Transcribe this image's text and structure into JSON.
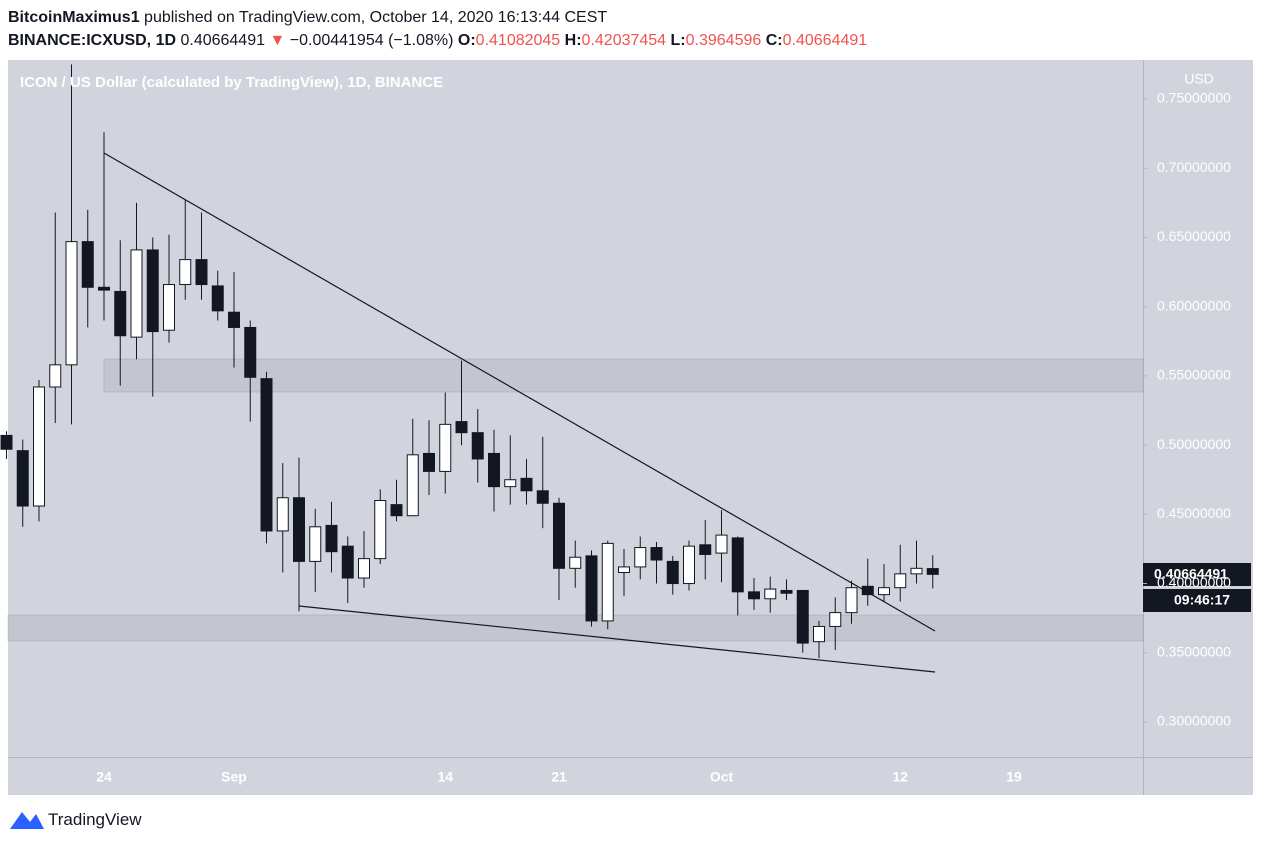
{
  "header": {
    "author": "BitcoinMaximus1",
    "published": "published on TradingView.com, October 14, 2020 16:13:44 CEST",
    "symbol": "BINANCE:ICXUSD, 1D",
    "change": "−0.00441954 (−1.08%)",
    "o_label": "O:",
    "h_label": "H:",
    "l_label": "L:",
    "c_label": "C:"
  },
  "chart_data": {
    "type": "candlestick",
    "title": "ICON / US Dollar (calculated by TradingView), 1D, BINANCE",
    "y_axis_label": "USD",
    "categories": [
      null,
      null,
      null,
      null,
      null,
      null,
      "24",
      null,
      null,
      null,
      null,
      null,
      null,
      null,
      "Sep",
      null,
      null,
      null,
      null,
      null,
      null,
      null,
      null,
      null,
      null,
      null,
      null,
      "14",
      null,
      null,
      null,
      null,
      null,
      null,
      "21",
      null,
      null,
      null,
      null,
      null,
      null,
      null,
      null,
      null,
      "Oct",
      null,
      null,
      null,
      null,
      null,
      null,
      null,
      null,
      null,
      null,
      "12",
      null,
      null,
      null,
      null,
      null,
      null,
      "19",
      null,
      null,
      null,
      null,
      null,
      null,
      null
    ],
    "open": [
      0.507,
      0.496,
      0.456,
      0.542,
      0.558,
      0.647,
      0.614,
      0.611,
      0.578,
      0.641,
      0.583,
      0.616,
      0.634,
      0.615,
      0.596,
      0.585,
      0.548,
      0.438,
      0.462,
      0.416,
      0.442,
      0.427,
      0.404,
      0.418,
      0.457,
      0.449,
      0.494,
      0.481,
      0.517,
      0.509,
      0.494,
      0.47,
      0.476,
      0.467,
      0.458,
      0.411,
      0.42,
      0.373,
      0.408,
      0.412,
      0.426,
      0.416,
      0.4,
      0.428,
      0.422,
      0.433,
      0.394,
      0.389,
      0.395,
      0.395,
      0.358,
      0.369,
      0.379,
      0.398,
      0.392,
      0.397,
      0.407,
      0.41082045,
      null,
      null,
      null,
      null,
      null,
      null,
      null,
      null,
      null,
      null,
      null,
      null
    ],
    "high": [
      0.51,
      0.504,
      0.547,
      0.668,
      0.775,
      0.67,
      0.726,
      0.648,
      0.675,
      0.65,
      0.652,
      0.677,
      0.668,
      0.626,
      0.625,
      0.59,
      0.553,
      0.487,
      0.491,
      0.454,
      0.459,
      0.434,
      0.438,
      0.468,
      0.475,
      0.519,
      0.518,
      0.538,
      0.561,
      0.526,
      0.511,
      0.507,
      0.49,
      0.506,
      0.462,
      0.431,
      0.424,
      0.431,
      0.425,
      0.434,
      0.43,
      0.42,
      0.431,
      0.446,
      0.453,
      0.434,
      0.404,
      0.405,
      0.403,
      0.395,
      0.373,
      0.39,
      0.402,
      0.418,
      0.414,
      0.428,
      0.431,
      0.42037454,
      null,
      null,
      null,
      null,
      null,
      null,
      null,
      null,
      null,
      null,
      null,
      null
    ],
    "low": [
      0.49,
      0.441,
      0.445,
      0.516,
      0.515,
      0.585,
      0.59,
      0.543,
      0.562,
      0.535,
      0.574,
      0.605,
      0.605,
      0.59,
      0.556,
      0.517,
      0.429,
      0.408,
      0.38,
      0.394,
      0.408,
      0.386,
      0.397,
      0.414,
      0.445,
      0.449,
      0.464,
      0.465,
      0.5,
      0.473,
      0.452,
      0.457,
      0.457,
      0.44,
      0.388,
      0.397,
      0.369,
      0.367,
      0.391,
      0.403,
      0.4,
      0.392,
      0.395,
      0.403,
      0.401,
      0.377,
      0.381,
      0.379,
      0.388,
      0.35,
      0.346,
      0.352,
      0.371,
      0.384,
      0.387,
      0.387,
      0.4,
      0.3964596,
      null,
      null,
      null,
      null,
      null,
      null,
      null,
      null,
      null,
      null,
      null,
      null
    ],
    "close": [
      0.497,
      0.456,
      0.542,
      0.558,
      0.647,
      0.614,
      0.612,
      0.579,
      0.641,
      0.582,
      0.616,
      0.634,
      0.616,
      0.597,
      0.585,
      0.549,
      0.438,
      0.462,
      0.416,
      0.441,
      0.423,
      0.404,
      0.418,
      0.46,
      0.449,
      0.493,
      0.481,
      0.515,
      0.509,
      0.49,
      0.47,
      0.475,
      0.467,
      0.458,
      0.411,
      0.419,
      0.373,
      0.429,
      0.412,
      0.426,
      0.417,
      0.4,
      0.427,
      0.421,
      0.435,
      0.394,
      0.389,
      0.396,
      0.393,
      0.357,
      0.369,
      0.379,
      0.397,
      0.392,
      0.397,
      0.407,
      0.411,
      0.40664491,
      null,
      null,
      null,
      null,
      null,
      null,
      null,
      null,
      null,
      null,
      null,
      null
    ],
    "up_color": "#ffffff",
    "down_color": "#131722",
    "ylim": [
      0.2747,
      0.7782
    ],
    "yticks": [
      {
        "value": 0.3,
        "label": "0.30000000"
      },
      {
        "value": 0.35,
        "label": "0.35000000"
      },
      {
        "value": 0.4,
        "label": "0.40000000"
      },
      {
        "value": 0.45,
        "label": "0.45000000"
      },
      {
        "value": 0.5,
        "label": "0.50000000"
      },
      {
        "value": 0.55,
        "label": "0.55000000"
      },
      {
        "value": 0.6,
        "label": "0.60000000"
      },
      {
        "value": 0.65,
        "label": "0.65000000"
      },
      {
        "value": 0.7,
        "label": "0.70000000"
      },
      {
        "value": 0.75,
        "label": "0.75000000"
      }
    ],
    "countdown": "09:46:17"
  },
  "footer": {
    "brand": "TradingView"
  }
}
